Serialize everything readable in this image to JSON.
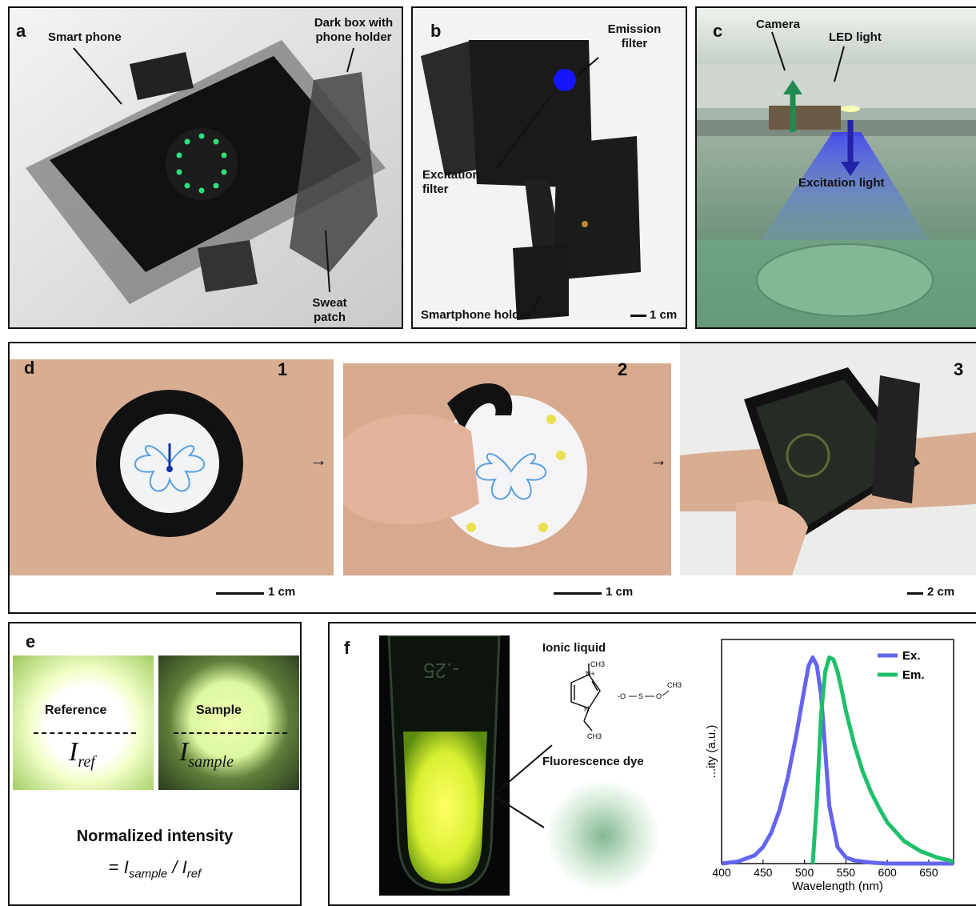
{
  "panel_a": {
    "letter": "a",
    "smart_phone": "Smart phone",
    "dark_box": "Dark box with phone holder",
    "sweat_patch": "Sweat patch"
  },
  "panel_b": {
    "letter": "b",
    "emission_filter": "Emission filter",
    "excitation_filter": "Excitation filter",
    "smartphone_holder": "Smartphone holder",
    "scale": "1 cm"
  },
  "panel_c": {
    "letter": "c",
    "camera": "Camera",
    "led_light": "LED light",
    "excitation_light": "Excitation light"
  },
  "panel_d": {
    "letter": "d",
    "steps": [
      {
        "num": "1",
        "scale": "1 cm"
      },
      {
        "num": "2",
        "scale": "1 cm"
      },
      {
        "num": "3",
        "scale": "2 cm"
      }
    ]
  },
  "panel_e": {
    "letter": "e",
    "reference": "Reference",
    "sample": "Sample",
    "i_ref_main": "I",
    "i_ref_sub": "ref",
    "i_sample_main": "I",
    "i_sample_sub": "sample",
    "normalized_title": "Normalized intensity",
    "formula_eq": "= ",
    "formula_i1": "I",
    "formula_sub1": "sample",
    "formula_slash": " / ",
    "formula_i2": "I",
    "formula_sub2": "ref"
  },
  "panel_f": {
    "letter": "f",
    "ionic_liquid": "Ionic liquid",
    "fluorescence_dye": "Fluorescence dye",
    "tube_text": "-.25",
    "chem": {
      "ch3_top": "CH3",
      "ch3_right": "CH3",
      "ch3_bottom": "CH3",
      "n_plus": "N+",
      "n": "N",
      "o_minus": "-O",
      "s": "S",
      "o": "O"
    }
  },
  "chart_data": {
    "type": "line",
    "xlabel": "Wavelength (nm)",
    "ylabel": "...ity (a.u.)",
    "xlim": [
      400,
      680
    ],
    "xticks": [
      400,
      450,
      500,
      550,
      600,
      650
    ],
    "ylim": [
      0,
      1.0
    ],
    "legend_position": "top-right",
    "series": [
      {
        "name": "Ex.",
        "color": "#6464f0",
        "x": [
          400,
          420,
          440,
          450,
          460,
          470,
          480,
          490,
          500,
          505,
          510,
          515,
          520,
          525,
          530,
          540,
          550,
          560,
          570,
          580,
          600,
          620,
          640,
          680
        ],
        "y": [
          0.0,
          0.01,
          0.04,
          0.08,
          0.15,
          0.26,
          0.42,
          0.62,
          0.85,
          0.96,
          1.0,
          0.96,
          0.82,
          0.55,
          0.28,
          0.08,
          0.03,
          0.015,
          0.01,
          0.005,
          0.0,
          0.0,
          0.0,
          0.0
        ]
      },
      {
        "name": "Em.",
        "color": "#1fc06a",
        "x": [
          510,
          515,
          520,
          525,
          530,
          535,
          540,
          545,
          550,
          560,
          570,
          580,
          590,
          600,
          620,
          640,
          660,
          680
        ],
        "y": [
          0.0,
          0.3,
          0.72,
          0.93,
          1.0,
          0.99,
          0.93,
          0.84,
          0.74,
          0.58,
          0.45,
          0.35,
          0.27,
          0.2,
          0.11,
          0.06,
          0.03,
          0.01
        ]
      }
    ]
  }
}
